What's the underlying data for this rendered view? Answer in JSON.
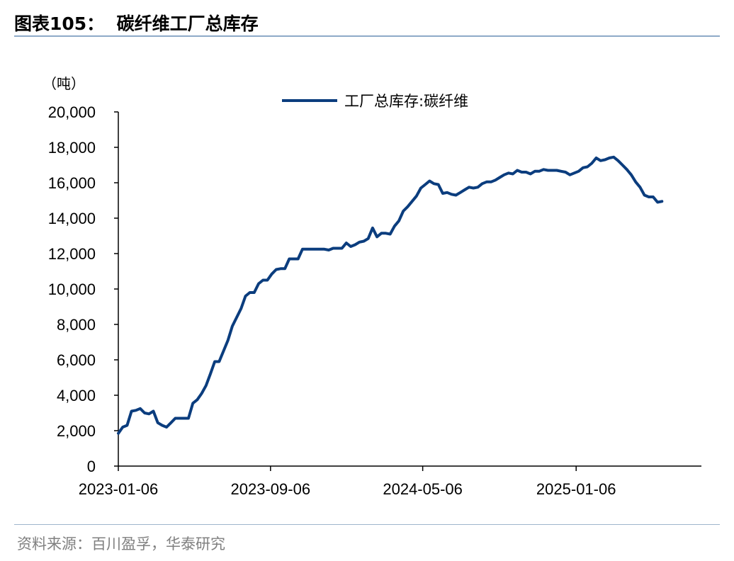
{
  "header": {
    "figure_label": "图表105：",
    "title": "碳纤维工厂总库存"
  },
  "source": "资料来源：百川盈孚，华泰研究",
  "colors": {
    "series": "#0b3d7e",
    "axis": "#000000"
  },
  "chart_data": {
    "type": "line",
    "title": "碳纤维工厂总库存",
    "unit_label": "（吨）",
    "ylim": [
      0,
      20000
    ],
    "y_ticks": [
      0,
      2000,
      4000,
      6000,
      8000,
      10000,
      12000,
      14000,
      16000,
      18000,
      20000
    ],
    "y_tick_labels": [
      "0",
      "2,000",
      "4,000",
      "6,000",
      "8,000",
      "10,000",
      "12,000",
      "14,000",
      "16,000",
      "18,000",
      "20,000"
    ],
    "x_start": "2023-01-06",
    "x_end": "2025-07-25",
    "x_ticks": [
      "2023-01-06",
      "2023-09-06",
      "2024-05-06",
      "2025-01-06"
    ],
    "grid": false,
    "legend_position": "top-center",
    "series": [
      {
        "name": "工厂总库存:碳纤维",
        "points": [
          [
            "2023-01-06",
            1850
          ],
          [
            "2023-01-13",
            2200
          ],
          [
            "2023-01-20",
            2300
          ],
          [
            "2023-01-27",
            3100
          ],
          [
            "2023-02-03",
            3150
          ],
          [
            "2023-02-10",
            3250
          ],
          [
            "2023-02-17",
            3000
          ],
          [
            "2023-02-24",
            2950
          ],
          [
            "2023-03-03",
            3100
          ],
          [
            "2023-03-10",
            2450
          ],
          [
            "2023-03-17",
            2300
          ],
          [
            "2023-03-24",
            2200
          ],
          [
            "2023-03-31",
            2450
          ],
          [
            "2023-04-07",
            2700
          ],
          [
            "2023-04-14",
            2700
          ],
          [
            "2023-04-21",
            2700
          ],
          [
            "2023-04-28",
            2700
          ],
          [
            "2023-05-05",
            3550
          ],
          [
            "2023-05-12",
            3750
          ],
          [
            "2023-05-19",
            4100
          ],
          [
            "2023-05-26",
            4550
          ],
          [
            "2023-06-02",
            5200
          ],
          [
            "2023-06-09",
            5900
          ],
          [
            "2023-06-16",
            5900
          ],
          [
            "2023-06-23",
            6500
          ],
          [
            "2023-06-30",
            7100
          ],
          [
            "2023-07-07",
            7900
          ],
          [
            "2023-07-14",
            8400
          ],
          [
            "2023-07-21",
            8900
          ],
          [
            "2023-07-28",
            9600
          ],
          [
            "2023-08-04",
            9800
          ],
          [
            "2023-08-11",
            9800
          ],
          [
            "2023-08-18",
            10300
          ],
          [
            "2023-08-25",
            10500
          ],
          [
            "2023-09-01",
            10500
          ],
          [
            "2023-09-08",
            10850
          ],
          [
            "2023-09-15",
            11100
          ],
          [
            "2023-09-22",
            11150
          ],
          [
            "2023-09-29",
            11150
          ],
          [
            "2023-10-06",
            11700
          ],
          [
            "2023-10-13",
            11700
          ],
          [
            "2023-10-20",
            11700
          ],
          [
            "2023-10-27",
            12250
          ],
          [
            "2023-11-03",
            12250
          ],
          [
            "2023-11-10",
            12250
          ],
          [
            "2023-11-17",
            12250
          ],
          [
            "2023-11-24",
            12250
          ],
          [
            "2023-12-01",
            12250
          ],
          [
            "2023-12-08",
            12200
          ],
          [
            "2023-12-15",
            12300
          ],
          [
            "2023-12-22",
            12300
          ],
          [
            "2023-12-29",
            12300
          ],
          [
            "2024-01-05",
            12600
          ],
          [
            "2024-01-12",
            12400
          ],
          [
            "2024-01-19",
            12500
          ],
          [
            "2024-01-26",
            12650
          ],
          [
            "2024-02-02",
            12700
          ],
          [
            "2024-02-09",
            12850
          ],
          [
            "2024-02-16",
            13450
          ],
          [
            "2024-02-23",
            12950
          ],
          [
            "2024-03-01",
            13150
          ],
          [
            "2024-03-08",
            13150
          ],
          [
            "2024-03-15",
            13100
          ],
          [
            "2024-03-22",
            13550
          ],
          [
            "2024-03-29",
            13850
          ],
          [
            "2024-04-05",
            14400
          ],
          [
            "2024-04-12",
            14650
          ],
          [
            "2024-04-19",
            14950
          ],
          [
            "2024-04-26",
            15250
          ],
          [
            "2024-05-03",
            15700
          ],
          [
            "2024-05-10",
            15900
          ],
          [
            "2024-05-17",
            16100
          ],
          [
            "2024-05-24",
            15950
          ],
          [
            "2024-05-31",
            15900
          ],
          [
            "2024-06-07",
            15400
          ],
          [
            "2024-06-14",
            15450
          ],
          [
            "2024-06-21",
            15350
          ],
          [
            "2024-06-28",
            15300
          ],
          [
            "2024-07-05",
            15450
          ],
          [
            "2024-07-12",
            15600
          ],
          [
            "2024-07-19",
            15750
          ],
          [
            "2024-07-26",
            15700
          ],
          [
            "2024-08-02",
            15750
          ],
          [
            "2024-08-09",
            15950
          ],
          [
            "2024-08-16",
            16050
          ],
          [
            "2024-08-23",
            16050
          ],
          [
            "2024-08-30",
            16150
          ],
          [
            "2024-09-06",
            16300
          ],
          [
            "2024-09-13",
            16450
          ],
          [
            "2024-09-20",
            16550
          ],
          [
            "2024-09-27",
            16500
          ],
          [
            "2024-10-04",
            16700
          ],
          [
            "2024-10-11",
            16600
          ],
          [
            "2024-10-18",
            16600
          ],
          [
            "2024-10-25",
            16500
          ],
          [
            "2024-11-01",
            16650
          ],
          [
            "2024-11-08",
            16650
          ],
          [
            "2024-11-15",
            16750
          ],
          [
            "2024-11-22",
            16700
          ],
          [
            "2024-11-29",
            16700
          ],
          [
            "2024-12-06",
            16700
          ],
          [
            "2024-12-13",
            16650
          ],
          [
            "2024-12-20",
            16600
          ],
          [
            "2024-12-27",
            16450
          ],
          [
            "2025-01-03",
            16550
          ],
          [
            "2025-01-10",
            16650
          ],
          [
            "2025-01-17",
            16850
          ],
          [
            "2025-01-24",
            16900
          ],
          [
            "2025-01-31",
            17100
          ],
          [
            "2025-02-07",
            17400
          ],
          [
            "2025-02-14",
            17250
          ],
          [
            "2025-02-21",
            17300
          ],
          [
            "2025-02-28",
            17400
          ],
          [
            "2025-03-07",
            17450
          ],
          [
            "2025-03-14",
            17250
          ],
          [
            "2025-03-21",
            17000
          ],
          [
            "2025-03-28",
            16750
          ],
          [
            "2025-04-04",
            16450
          ],
          [
            "2025-04-11",
            16050
          ],
          [
            "2025-04-18",
            15750
          ],
          [
            "2025-04-25",
            15300
          ],
          [
            "2025-05-02",
            15200
          ],
          [
            "2025-05-09",
            15200
          ],
          [
            "2025-05-16",
            14900
          ],
          [
            "2025-05-23",
            14950
          ]
        ]
      }
    ]
  }
}
